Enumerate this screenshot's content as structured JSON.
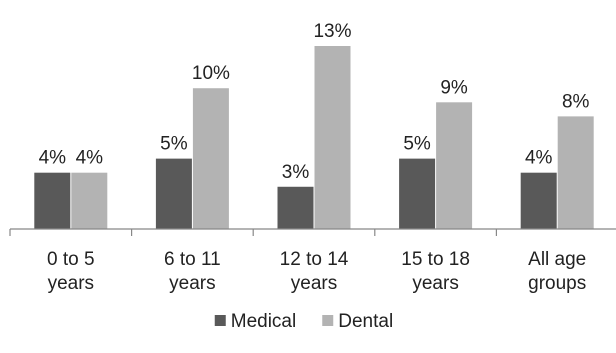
{
  "chart_data": {
    "type": "bar",
    "title": "",
    "xlabel": "",
    "ylabel": "",
    "categories": [
      [
        "0 to 5",
        "years"
      ],
      [
        "6 to 11",
        "years"
      ],
      [
        "12 to 14",
        "years"
      ],
      [
        "15 to 18",
        "years"
      ],
      [
        "All age",
        "groups"
      ]
    ],
    "series": [
      {
        "name": "Medical",
        "color": "#595959",
        "values": [
          4,
          5,
          3,
          5,
          4
        ],
        "labels": [
          "4%",
          "5%",
          "3%",
          "5%",
          "4%"
        ]
      },
      {
        "name": "Dental",
        "color": "#b3b3b3",
        "values": [
          4,
          10,
          13,
          9,
          8
        ],
        "labels": [
          "4%",
          "10%",
          "13%",
          "9%",
          "8%"
        ]
      }
    ],
    "ylim": [
      0,
      13
    ],
    "grid": false,
    "legend_position": "bottom"
  }
}
